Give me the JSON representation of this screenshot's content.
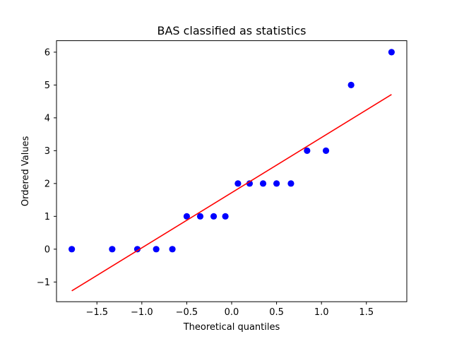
{
  "chart_data": {
    "type": "scatter",
    "title": "BAS classified as statistics",
    "xlabel": "Theoretical quantiles",
    "ylabel": "Ordered Values",
    "xlim": [
      -1.95,
      1.95
    ],
    "ylim": [
      -1.6,
      6.35
    ],
    "xticks": [
      -1.5,
      -1.0,
      -0.5,
      0.0,
      0.5,
      1.0,
      1.5
    ],
    "xtick_labels": [
      "−1.5",
      "−1.0",
      "−0.5",
      "0.0",
      "0.5",
      "1.0",
      "1.5"
    ],
    "yticks": [
      -1,
      0,
      1,
      2,
      3,
      4,
      5,
      6
    ],
    "ytick_labels": [
      "−1",
      "0",
      "1",
      "2",
      "3",
      "4",
      "5",
      "6"
    ],
    "grid": false,
    "legend": "none",
    "series": [
      {
        "points": [
          {
            "x": -1.78,
            "y": 0
          },
          {
            "x": -1.33,
            "y": 0
          },
          {
            "x": -1.05,
            "y": 0
          },
          {
            "x": -0.84,
            "y": 0
          },
          {
            "x": -0.66,
            "y": 0
          },
          {
            "x": -0.5,
            "y": 1
          },
          {
            "x": -0.35,
            "y": 1
          },
          {
            "x": -0.2,
            "y": 1
          },
          {
            "x": -0.07,
            "y": 1
          },
          {
            "x": 0.07,
            "y": 2
          },
          {
            "x": 0.2,
            "y": 2
          },
          {
            "x": 0.35,
            "y": 2
          },
          {
            "x": 0.5,
            "y": 2
          },
          {
            "x": 0.66,
            "y": 2
          },
          {
            "x": 0.84,
            "y": 3
          },
          {
            "x": 1.05,
            "y": 3
          },
          {
            "x": 1.33,
            "y": 5
          },
          {
            "x": 1.78,
            "y": 6
          }
        ],
        "color": "#0000ff"
      },
      {
        "type": "line",
        "points": [
          {
            "x": -1.78,
            "y": -1.27
          },
          {
            "x": 1.78,
            "y": 4.71
          }
        ],
        "color": "#ff0000"
      }
    ]
  }
}
